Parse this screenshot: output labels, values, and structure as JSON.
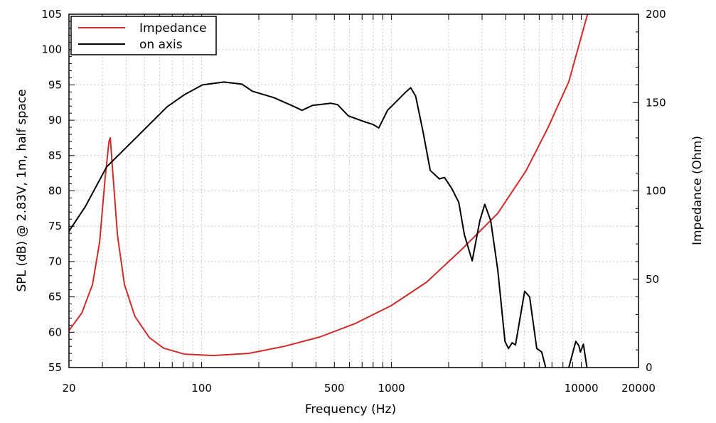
{
  "chart_data": {
    "type": "line",
    "title": "",
    "xlabel": "Frequency (Hz)",
    "ylabel": "SPL (dB) @ 2.83V, 1m, half space",
    "y2label": "Impedance (Ohm)",
    "xscale": "log",
    "xlim": [
      20,
      20000
    ],
    "ylim": [
      55,
      105
    ],
    "y2lim": [
      0,
      200
    ],
    "xticks": [
      20,
      100,
      500,
      1000,
      10000,
      20000
    ],
    "yticks": [
      55,
      60,
      65,
      70,
      75,
      80,
      85,
      90,
      95,
      100,
      105
    ],
    "y2ticks": [
      0,
      50,
      100,
      150,
      200
    ],
    "grid": true,
    "legend_position": "top-left",
    "series": [
      {
        "name": "Impedance",
        "axis": "right",
        "color": "#d12a2a",
        "x": [
          20,
          23.4,
          26.6,
          29,
          31,
          32.5,
          33,
          33.8,
          36,
          39.2,
          44.5,
          53,
          63,
          81,
          115,
          177,
          272,
          419,
          646,
          995,
          1530,
          2360,
          3630,
          5120,
          6660,
          8590,
          10780
        ],
        "y": [
          20.9,
          31,
          47,
          71,
          107,
          128,
          130,
          115,
          75,
          47,
          29,
          17,
          11,
          7.6,
          6.8,
          8,
          12,
          17.3,
          25,
          35,
          48.3,
          67.2,
          87.3,
          111.5,
          135.6,
          161.8,
          200
        ]
      },
      {
        "name": "on axis",
        "axis": "left",
        "color": "#000000",
        "segments": [
          {
            "x": [
              20,
              24.4,
              31.6,
              39.2,
              50.8,
              65.8,
              81,
              101,
              131,
              163,
              185,
              240,
              297,
              338,
              384,
              478,
              520,
              593,
              736,
              800,
              857,
              953,
              1083,
              1180,
              1262,
              1340,
              1465,
              1600,
              1787,
              1900,
              2070,
              2260,
              2420,
              2660,
              2920,
              3100,
              3330,
              3630,
              3960,
              4130,
              4320,
              4500,
              5030,
              5340,
              5820,
              6180,
              6490
            ],
            "y": [
              74.3,
              77.8,
              83.4,
              85.9,
              88.9,
              91.9,
              93.6,
              95.0,
              95.4,
              95.1,
              94.1,
              93.2,
              92.1,
              91.4,
              92.1,
              92.4,
              92.2,
              90.6,
              89.7,
              89.4,
              88.9,
              91.4,
              92.9,
              93.9,
              94.6,
              93.4,
              88.4,
              82.9,
              81.7,
              81.9,
              80.4,
              78.4,
              73.8,
              70.1,
              75.8,
              78.1,
              75.8,
              68.8,
              58.7,
              57.7,
              58.5,
              58.2,
              65.8,
              65.0,
              57.7,
              57.2,
              55
            ]
          },
          {
            "x": [
              8590,
              9350,
              9700,
              9890,
              10250,
              10700
            ],
            "y": [
              55,
              58.7,
              58.1,
              57.2,
              58.3,
              55
            ]
          }
        ]
      }
    ]
  }
}
